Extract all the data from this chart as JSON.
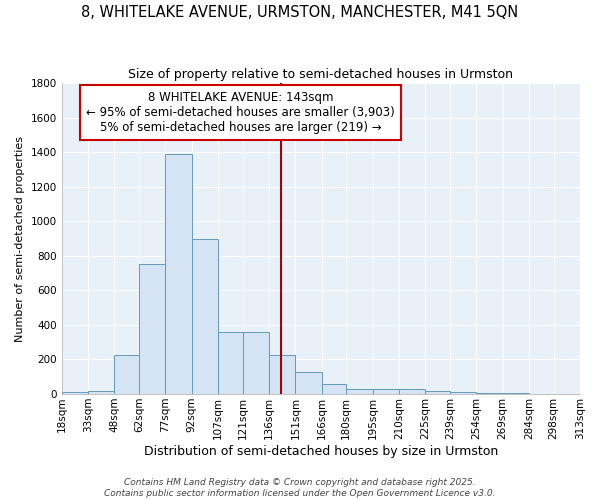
{
  "title": "8, WHITELAKE AVENUE, URMSTON, MANCHESTER, M41 5QN",
  "subtitle": "Size of property relative to semi-detached houses in Urmston",
  "xlabel": "Distribution of semi-detached houses by size in Urmston",
  "ylabel": "Number of semi-detached properties",
  "bar_color": "#d4e4f4",
  "bar_edge_color": "#6699bb",
  "plot_bg_color": "#e8f0f8",
  "fig_bg_color": "#ffffff",
  "grid_color": "#ffffff",
  "vline_x": 143,
  "vline_color": "#aa0000",
  "annotation_line1": "8 WHITELAKE AVENUE: 143sqm",
  "annotation_line2": "← 95% of semi-detached houses are smaller (3,903)",
  "annotation_line3": "5% of semi-detached houses are larger (219) →",
  "annotation_box_color": "#ffffff",
  "annotation_box_edge": "#cc0000",
  "bin_edges": [
    18,
    33,
    48,
    62,
    77,
    92,
    107,
    121,
    136,
    151,
    166,
    180,
    195,
    210,
    225,
    239,
    254,
    269,
    284,
    298,
    313
  ],
  "bar_heights": [
    10,
    20,
    225,
    750,
    1390,
    900,
    360,
    360,
    225,
    130,
    60,
    30,
    30,
    30,
    20,
    10,
    5,
    5,
    2,
    2
  ],
  "ylim": [
    0,
    1800
  ],
  "yticks": [
    0,
    200,
    400,
    600,
    800,
    1000,
    1200,
    1400,
    1600,
    1800
  ],
  "footer_text": "Contains HM Land Registry data © Crown copyright and database right 2025.\nContains public sector information licensed under the Open Government Licence v3.0.",
  "title_fontsize": 10.5,
  "subtitle_fontsize": 9,
  "xlabel_fontsize": 9,
  "ylabel_fontsize": 8,
  "tick_fontsize": 7.5,
  "footer_fontsize": 6.5,
  "annotation_fontsize": 8.5
}
